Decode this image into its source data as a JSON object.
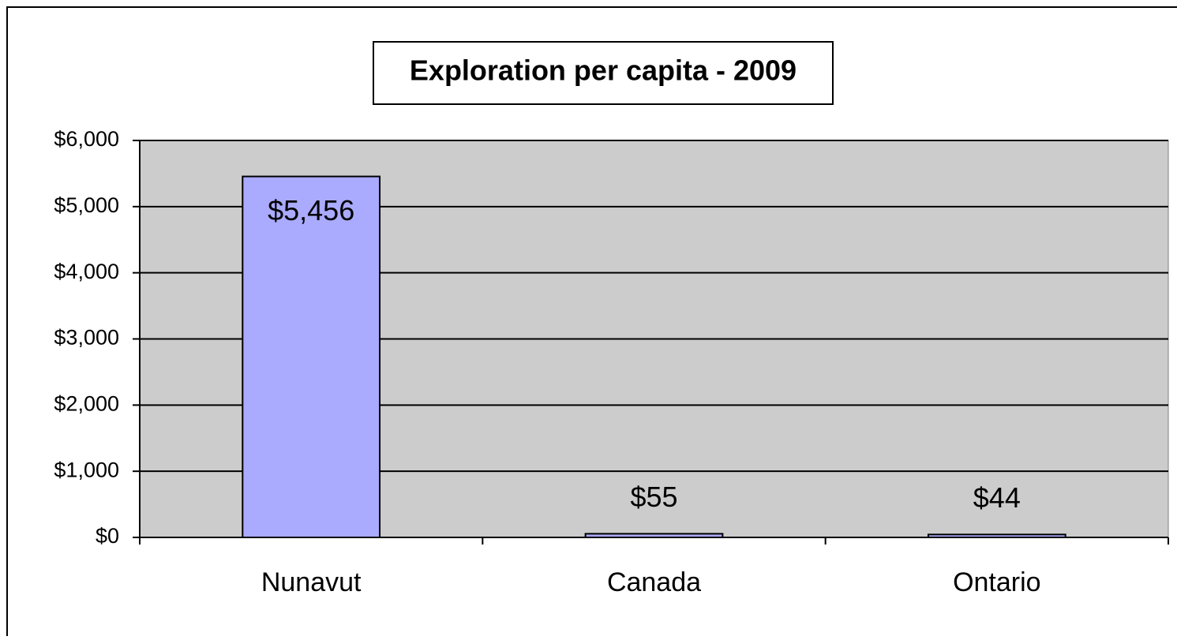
{
  "chart_data": {
    "type": "bar",
    "title": "Exploration per capita - 2009",
    "categories": [
      "Nunavut",
      "Canada",
      "Ontario"
    ],
    "values": [
      5456,
      55,
      44
    ],
    "value_labels": [
      "$5,456",
      "$55",
      "$44"
    ],
    "color": "#aaaaff",
    "ylim": [
      0,
      6000
    ],
    "yticks": [
      {
        "value": 0,
        "label": "$0"
      },
      {
        "value": 1000,
        "label": "$1,000"
      },
      {
        "value": 2000,
        "label": "$2,000"
      },
      {
        "value": 3000,
        "label": "$3,000"
      },
      {
        "value": 4000,
        "label": "$4,000"
      },
      {
        "value": 5000,
        "label": "$5,000"
      },
      {
        "value": 6000,
        "label": "$6,000"
      }
    ],
    "grid": true
  }
}
